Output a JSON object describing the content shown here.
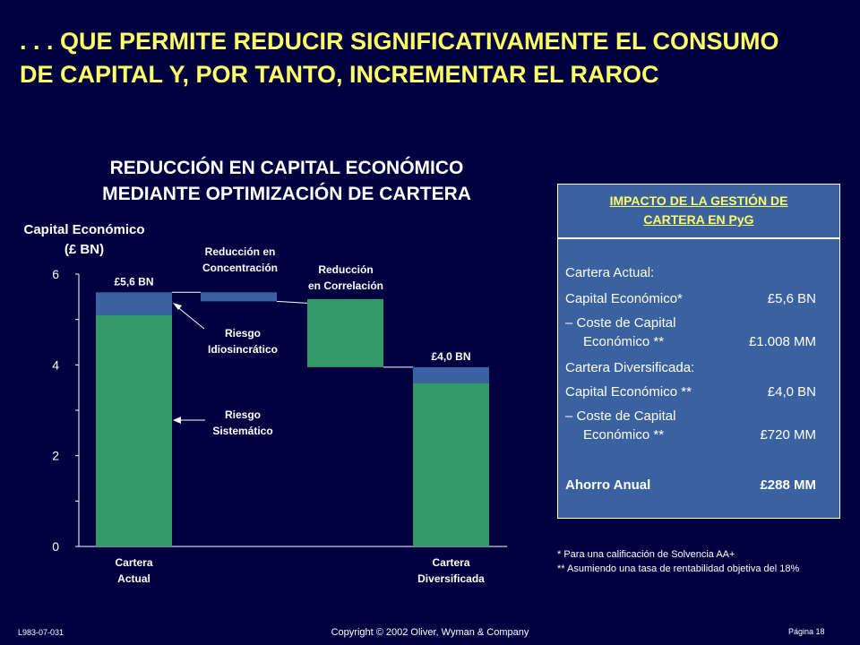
{
  "slide": {
    "title_line1": ". . . QUE PERMITE REDUCIR SIGNIFICATIVAMENTE EL CONSUMO",
    "title_line2": "DE CAPITAL Y, POR TANTO, INCREMENTAR EL RAROC"
  },
  "colors": {
    "background": "#000040",
    "title": "#ffff66",
    "green": "#339966",
    "blue": "#3a62a0",
    "panel": "#3a62a0"
  },
  "chart_data": {
    "type": "bar",
    "title_line1": "REDUCCIÓN EN CAPITAL ECONÓMICO",
    "title_line2": "MEDIANTE OPTIMIZACIÓN DE CARTERA",
    "ylabel_line1": "Capital Económico",
    "ylabel_line2": "(£ BN)",
    "ylim": [
      0,
      6
    ],
    "yticks": [
      0,
      2,
      4,
      6
    ],
    "grid": false,
    "bars": [
      {
        "name": "cartera-actual",
        "segments": [
          {
            "from": 0,
            "to": 5.1,
            "color": "green"
          },
          {
            "from": 5.1,
            "to": 5.6,
            "color": "blue"
          }
        ],
        "label": "£5,6 BN",
        "category": [
          "Cartera",
          "Actual"
        ]
      },
      {
        "name": "reduccion-concentracion",
        "segments": [
          {
            "from": 5.4,
            "to": 5.6,
            "color": "blue"
          }
        ],
        "label": "",
        "category": []
      },
      {
        "name": "reduccion-correlacion",
        "segments": [
          {
            "from": 3.95,
            "to": 5.45,
            "color": "green"
          }
        ],
        "label": "",
        "category": []
      },
      {
        "name": "cartera-diversificada",
        "segments": [
          {
            "from": 0,
            "to": 3.6,
            "color": "green"
          },
          {
            "from": 3.6,
            "to": 3.95,
            "color": "blue"
          }
        ],
        "label": "£4,0 BN",
        "category": [
          "Cartera",
          "Diversificada"
        ]
      }
    ],
    "annotations": [
      {
        "name": "reduccion-concentracion",
        "lines": [
          "Reducción en",
          "Concentración"
        ]
      },
      {
        "name": "reduccion-correlacion",
        "lines": [
          "Reducción",
          "en Correlación"
        ]
      },
      {
        "name": "riesgo-idiosincratico",
        "lines": [
          "Riesgo",
          "Idiosincrático"
        ]
      },
      {
        "name": "riesgo-sistematico",
        "lines": [
          "Riesgo",
          "Sistemático"
        ]
      }
    ]
  },
  "panel": {
    "header_line1": "IMPACTO DE LA GESTIÓN DE",
    "header_line2": "CARTERA EN PyG",
    "actual_heading": "Cartera Actual:",
    "actual_capital_label": "Capital Económico*",
    "actual_capital_value": "£5,6 BN",
    "actual_cost_label_1": "– Coste de Capital",
    "actual_cost_label_2": "Económico **",
    "actual_cost_value": "£1.008 MM",
    "div_heading": "Cartera Diversificada:",
    "div_capital_label": "Capital Económico **",
    "div_capital_value": "£4,0 BN",
    "div_cost_label_1": "– Coste de Capital",
    "div_cost_label_2": "Económico **",
    "div_cost_value": "£720 MM",
    "saving_label": "Ahorro Anual",
    "saving_value": "£288 MM"
  },
  "footnotes": {
    "note1": "* Para una calificación de Solvencia AA+",
    "note2": "** Asumiendo una tasa de rentabilidad objetiva del 18%"
  },
  "footer": {
    "doc_id": "L983-07-031",
    "copyright": "Copyright © 2002 Oliver, Wyman & Company",
    "page": "Página 18"
  }
}
